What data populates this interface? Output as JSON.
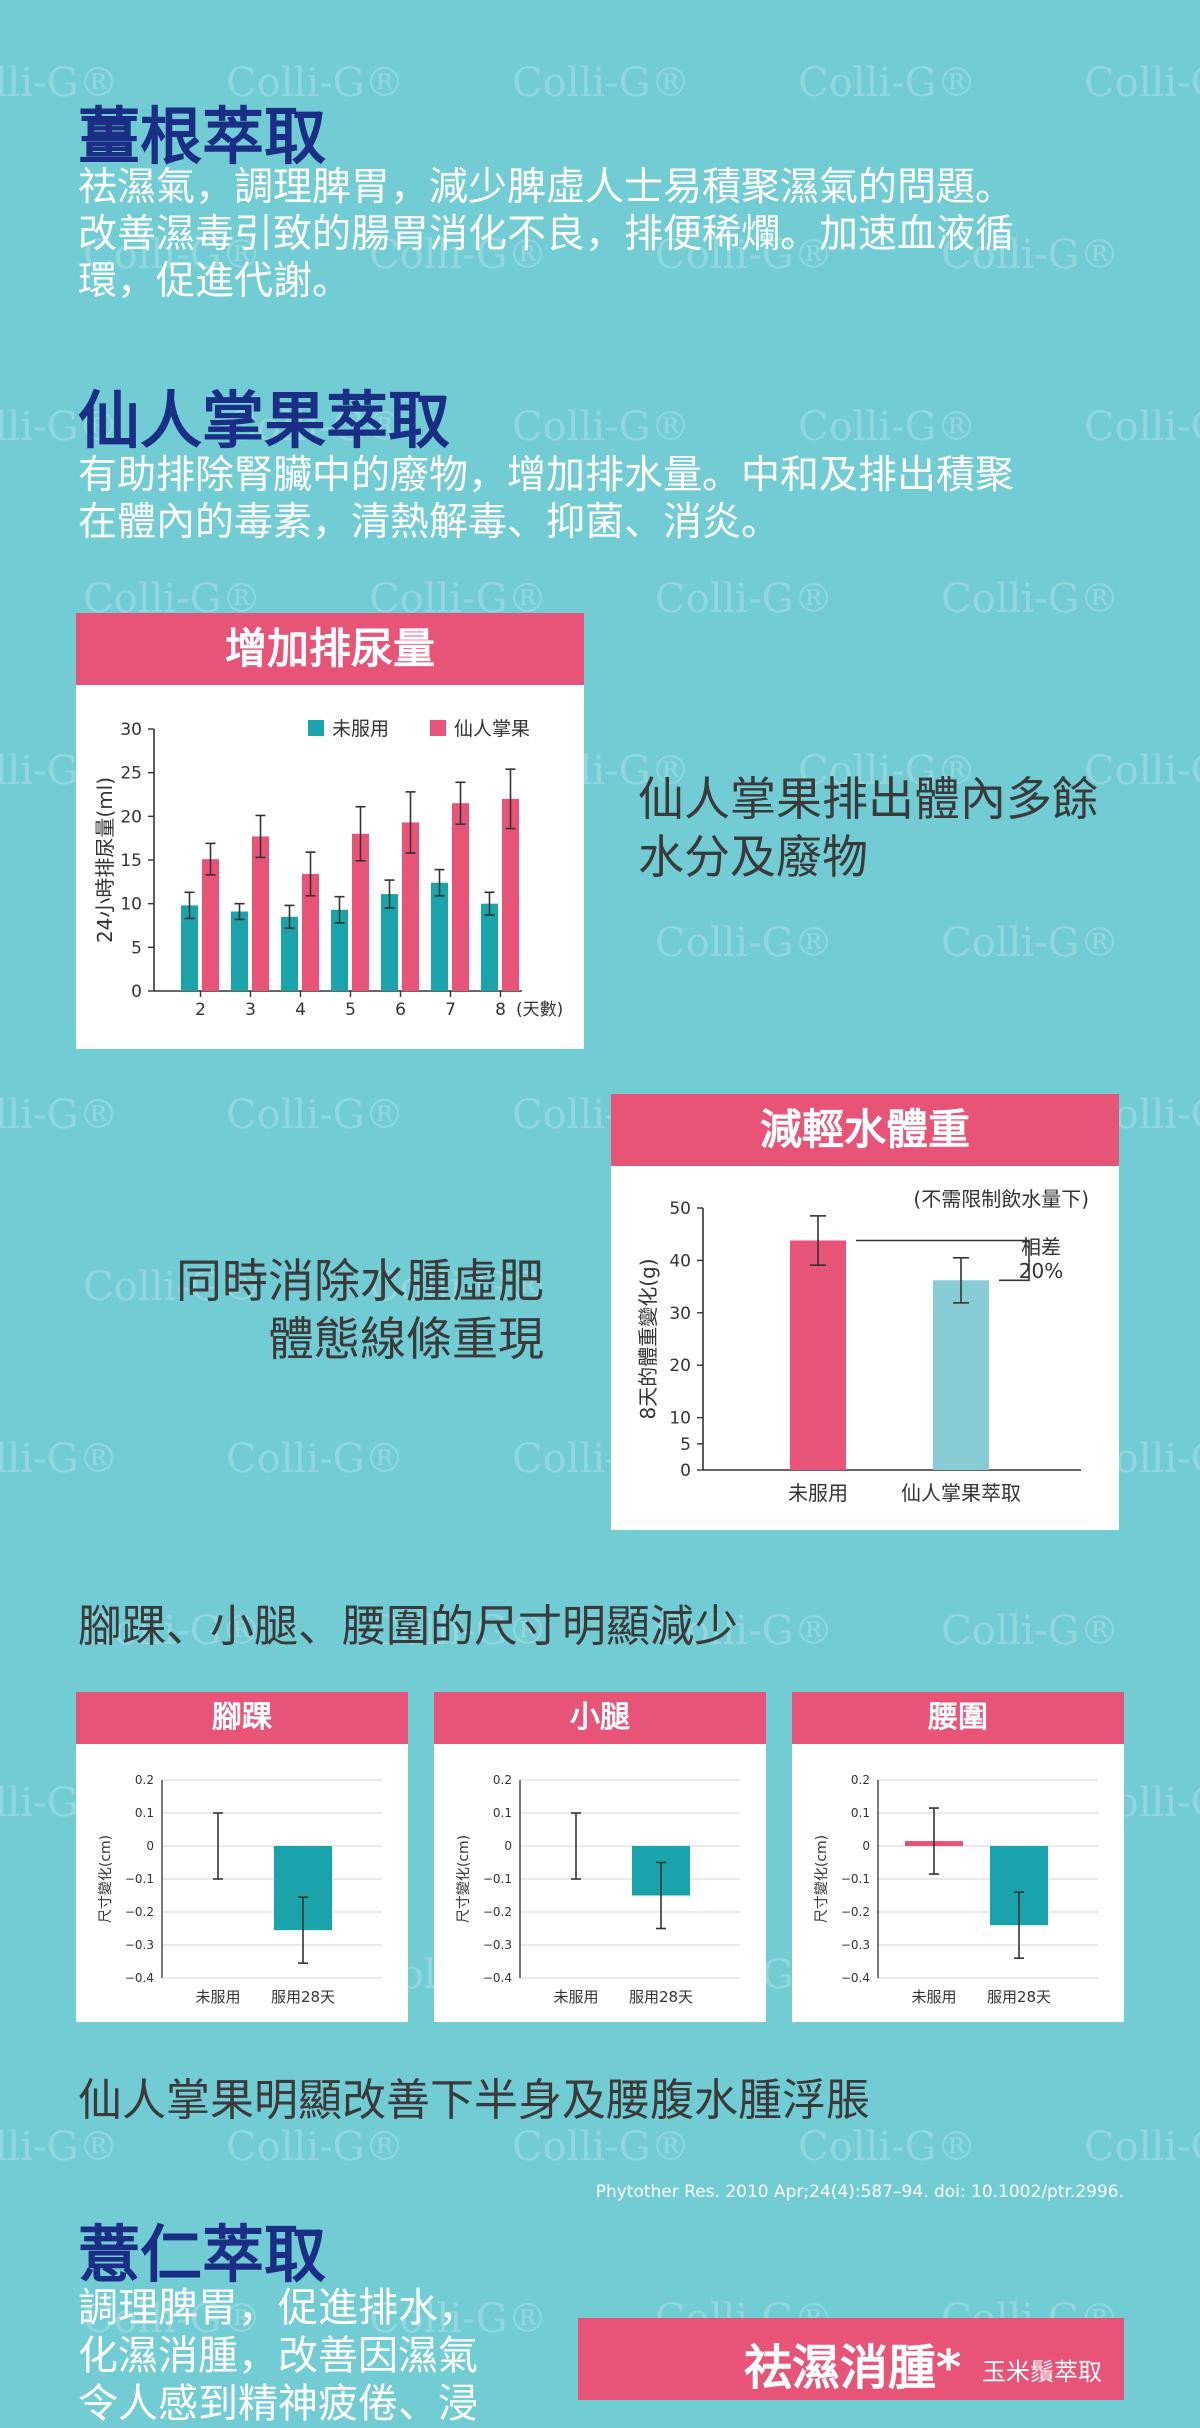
{
  "watermark": "Colli-G®",
  "sections": {
    "ginger": {
      "title": "薑根萃取",
      "lines": [
        "祛濕氣，調理脾胃，減少脾虛人士易積聚濕氣的問題。",
        "改善濕毒引致的腸胃消化不良，排便稀爛。加速血液循",
        "環，促進代謝。"
      ]
    },
    "cactus": {
      "title": "仙人掌果萃取",
      "lines": [
        "有助排除腎臟中的廢物，增加排水量。中和及排出積聚",
        "在體內的毒素，清熱解毒、抑菌、消炎。"
      ]
    },
    "coix": {
      "title": "薏仁萃取",
      "lines": [
        "調理脾胃，促進排水，",
        "化濕消腫，改善因濕氣",
        "令人感到精神疲倦、浸"
      ]
    }
  },
  "side_texts": {
    "urine": [
      "仙人掌果排出體內多餘",
      "水分及廢物"
    ],
    "weight": [
      "同時消除水腫虛肥",
      "體態線條重現"
    ]
  },
  "subtitles": {
    "sizes": "腳踝、小腿、腰圍的尺寸明顯減少",
    "conclusion": "仙人掌果明顯改善下半身及腰腹水腫浮脹"
  },
  "citation": "Phytother Res. 2010 Apr;24(4):587–94. doi: 10.1002/ptr.2996.",
  "bottom_card": {
    "title": "祛濕消腫*",
    "subtitle": "玉米鬚萃取"
  },
  "colors": {
    "background": "#72ccd4",
    "title_blue": "#1a2e86",
    "pink": "#e85478",
    "teal": "#1aa3ab",
    "light_teal": "#88cdd6"
  },
  "chart_data": [
    {
      "type": "bar",
      "title": "增加排尿量",
      "ylabel": "24小時排尿量(ml)",
      "xlabel": "(天數)",
      "categories": [
        "2",
        "3",
        "4",
        "5",
        "6",
        "7",
        "8"
      ],
      "ylim": [
        0,
        30
      ],
      "yticks": [
        "0",
        "5",
        "10",
        "15",
        "20",
        "25",
        "30"
      ],
      "legend_position": "top-right",
      "series": [
        {
          "name": "未服用",
          "color": "#1aa3ab",
          "values": [
            9.8,
            9.1,
            8.5,
            9.3,
            11.1,
            12.4,
            10.0
          ],
          "errors": [
            1.5,
            0.9,
            1.3,
            1.5,
            1.6,
            1.5,
            1.3
          ]
        },
        {
          "name": "仙人掌果",
          "color": "#e85478",
          "values": [
            15.1,
            17.7,
            13.4,
            18.0,
            19.3,
            21.5,
            22.0
          ],
          "errors": [
            1.8,
            2.4,
            2.5,
            3.1,
            3.5,
            2.4,
            3.4
          ]
        }
      ]
    },
    {
      "type": "bar",
      "title": "減輕水體重",
      "note": "(不需限制飲水量下)",
      "ylabel": "8天的體重變化(g)",
      "categories": [
        "未服用",
        "仙人掌果萃取"
      ],
      "values": [
        43.8,
        36.2
      ],
      "errors": [
        4.7,
        4.3
      ],
      "colors": [
        "#e85478",
        "#88cdd6"
      ],
      "ylim": [
        0,
        50
      ],
      "yticks": [
        "0",
        "5",
        "10",
        "20",
        "30",
        "40",
        "50"
      ],
      "annotation": [
        "相差",
        "20%"
      ]
    },
    {
      "type": "bar",
      "title": "腳踝",
      "ylabel": "尺寸變化(cm)",
      "categories": [
        "未服用",
        "服用28天"
      ],
      "values": [
        0.0,
        -0.255
      ],
      "errors": [
        0.1,
        0.1
      ],
      "colors": [
        "#e85478",
        "#1aa3ab"
      ],
      "ylim": [
        -0.4,
        0.2
      ],
      "yticks": [
        "0.2",
        "0.1",
        "0",
        "−0.1",
        "−0.2",
        "−0.3",
        "−0.4"
      ]
    },
    {
      "type": "bar",
      "title": "小腿",
      "ylabel": "尺寸變化(cm)",
      "categories": [
        "未服用",
        "服用28天"
      ],
      "values": [
        0.0,
        -0.15
      ],
      "errors": [
        0.1,
        0.1
      ],
      "colors": [
        "#e85478",
        "#1aa3ab"
      ],
      "ylim": [
        -0.4,
        0.2
      ],
      "yticks": [
        "0.2",
        "0.1",
        "0",
        "−0.1",
        "−0.2",
        "−0.3",
        "−0.4"
      ]
    },
    {
      "type": "bar",
      "title": "腰圍",
      "ylabel": "尺寸變化(cm)",
      "categories": [
        "未服用",
        "服用28天"
      ],
      "values": [
        0.015,
        -0.24
      ],
      "errors": [
        0.1,
        0.1
      ],
      "colors": [
        "#e85478",
        "#1aa3ab"
      ],
      "ylim": [
        -0.4,
        0.2
      ],
      "yticks": [
        "0.2",
        "0.1",
        "0",
        "−0.1",
        "−0.2",
        "−0.3",
        "−0.4"
      ]
    }
  ]
}
